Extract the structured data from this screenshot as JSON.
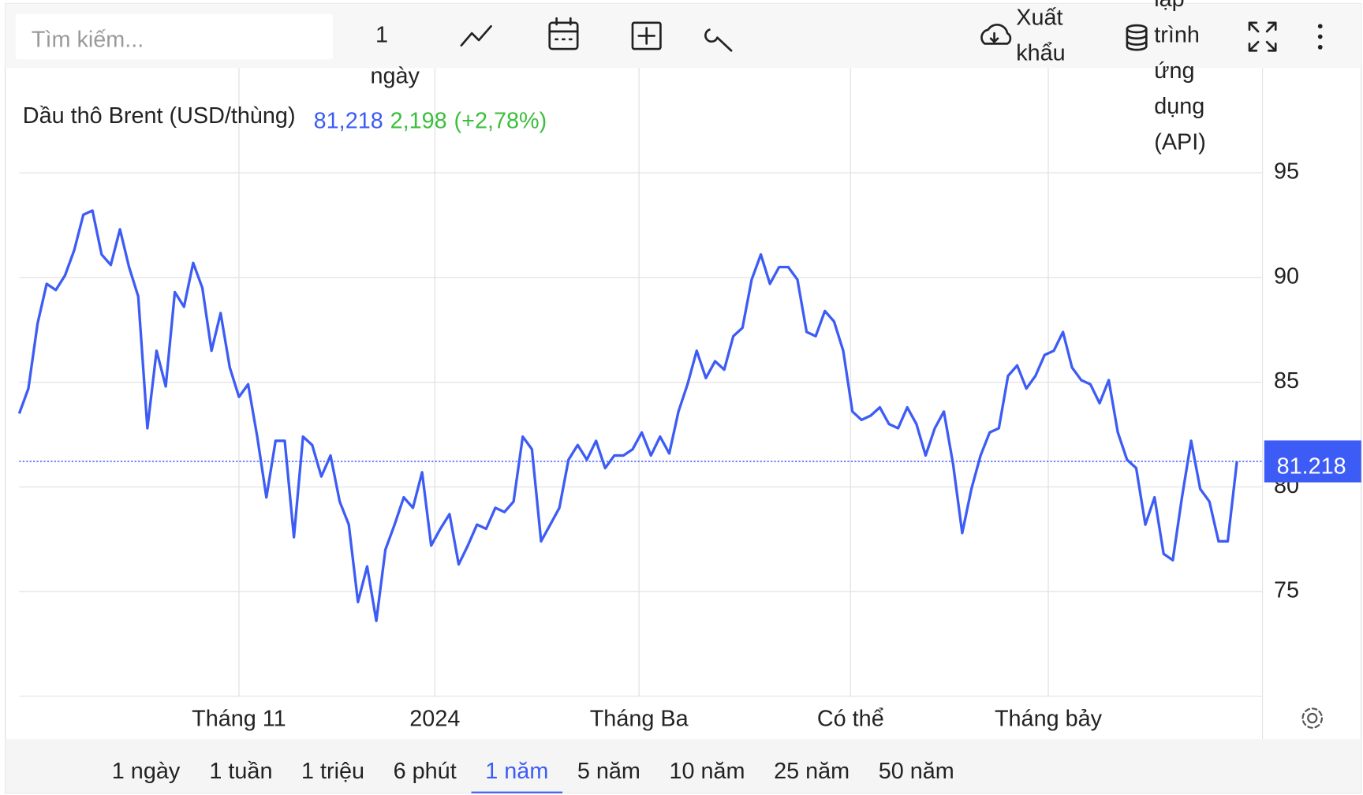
{
  "toolbar": {
    "search_placeholder": "Tìm kiếm...",
    "interval": "1 ngày",
    "export": "Xuất khẩu",
    "api": "lập trình ứng dụng (API)"
  },
  "chart_data": {
    "type": "line",
    "series": [
      {
        "name": "Dầu thô Brent (USD/thùng)",
        "color": "#3d5cf5",
        "values": [
          83.5,
          84.7,
          87.8,
          89.7,
          89.4,
          90.1,
          91.3,
          93.0,
          93.2,
          91.1,
          90.6,
          92.3,
          90.5,
          89.1,
          82.8,
          86.5,
          84.8,
          89.3,
          88.6,
          90.7,
          89.5,
          86.5,
          88.3,
          85.7,
          84.3,
          84.9,
          82.4,
          79.5,
          82.2,
          82.2,
          77.6,
          82.4,
          82.0,
          80.5,
          81.5,
          79.3,
          78.2,
          74.5,
          76.2,
          73.6,
          77.0,
          78.2,
          79.5,
          79.0,
          80.7,
          77.2,
          78.0,
          78.7,
          76.3,
          77.2,
          78.2,
          78.0,
          79.0,
          78.8,
          79.3,
          82.4,
          81.8,
          77.4,
          78.2,
          79.0,
          81.3,
          82.0,
          81.3,
          82.2,
          80.9,
          81.5,
          81.5,
          81.8,
          82.6,
          81.5,
          82.4,
          81.6,
          83.6,
          84.9,
          86.5,
          85.2,
          86.0,
          85.6,
          87.2,
          87.6,
          89.9,
          91.1,
          89.7,
          90.5,
          90.5,
          89.9,
          87.4,
          87.2,
          88.4,
          87.9,
          86.5,
          83.6,
          83.2,
          83.4,
          83.8,
          83.0,
          82.8,
          83.8,
          83.0,
          81.5,
          82.8,
          83.6,
          81.1,
          77.8,
          79.9,
          81.5,
          82.6,
          82.8,
          85.3,
          85.8,
          84.7,
          85.3,
          86.3,
          86.5,
          87.4,
          85.7,
          85.1,
          84.9,
          84.0,
          85.1,
          82.6,
          81.3,
          80.9,
          78.2,
          79.5,
          76.8,
          76.5,
          79.5,
          82.2,
          79.9,
          79.3,
          77.4,
          77.4,
          81.218
        ]
      }
    ],
    "price": "81,218",
    "change": "2,198",
    "change_pct": "(+2,78%)",
    "last_label": "81.218",
    "xlim": [
      0,
      135.8
    ],
    "xticks": [
      {
        "value": 24,
        "label": "Tháng 11"
      },
      {
        "value": 45.4,
        "label": "2024"
      },
      {
        "value": 67.7,
        "label": "Tháng Ba"
      },
      {
        "value": 90.8,
        "label": "Có thể"
      },
      {
        "value": 112.4,
        "label": "Tháng bảy"
      }
    ],
    "ylim": [
      70,
      100
    ],
    "yticks": [
      75,
      80,
      85,
      90,
      95
    ],
    "grid": true
  },
  "ranges": {
    "items": [
      "1 ngày",
      "1 tuần",
      "1 triệu",
      "6 phút",
      "1 năm",
      "5 năm",
      "10 năm",
      "25 năm",
      "50 năm"
    ],
    "active": 4
  }
}
